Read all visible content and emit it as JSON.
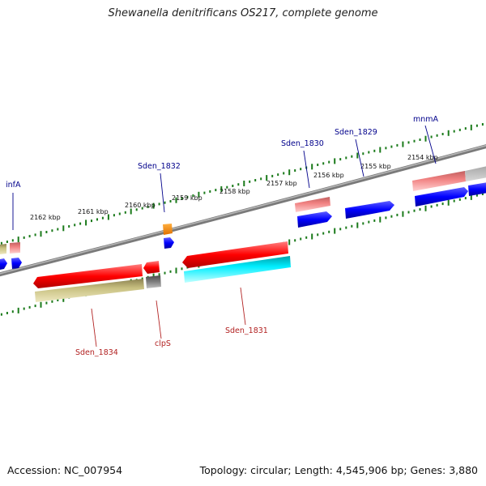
{
  "title": "Shewanella denitrificans OS217, complete genome",
  "accession_label": "Accession: NC_007954",
  "summary_label": "Topology: circular; Length: 4,545,906 bp; Genes: 3,880",
  "tick_labels": [
    "2154 kbp",
    "2155 kbp",
    "2156 kbp",
    "2157 kbp",
    "2158 kbp",
    "2159 kbp",
    "2160 kbp",
    "2161 kbp",
    "2162 kbp"
  ],
  "gene_labels_top": [
    "infA",
    "Sden_1832",
    "Sden_1830",
    "Sden_1829",
    "mnmA"
  ],
  "gene_labels_bottom": [
    "Sden_1834",
    "clpS",
    "Sden_1831"
  ],
  "colors": {
    "label_top": "#00008b",
    "label_bottom": "#b22222",
    "tick": "#1a7a1a",
    "gene_red": "#ff1a1a",
    "gene_blue": "#0000ee",
    "gene_pink": "#f08080",
    "gene_olive": "#c8c080",
    "gene_cyan": "#00e5ee",
    "gene_orange": "#ff8c00",
    "gene_gray": "#707070",
    "backbone": "#888888"
  }
}
